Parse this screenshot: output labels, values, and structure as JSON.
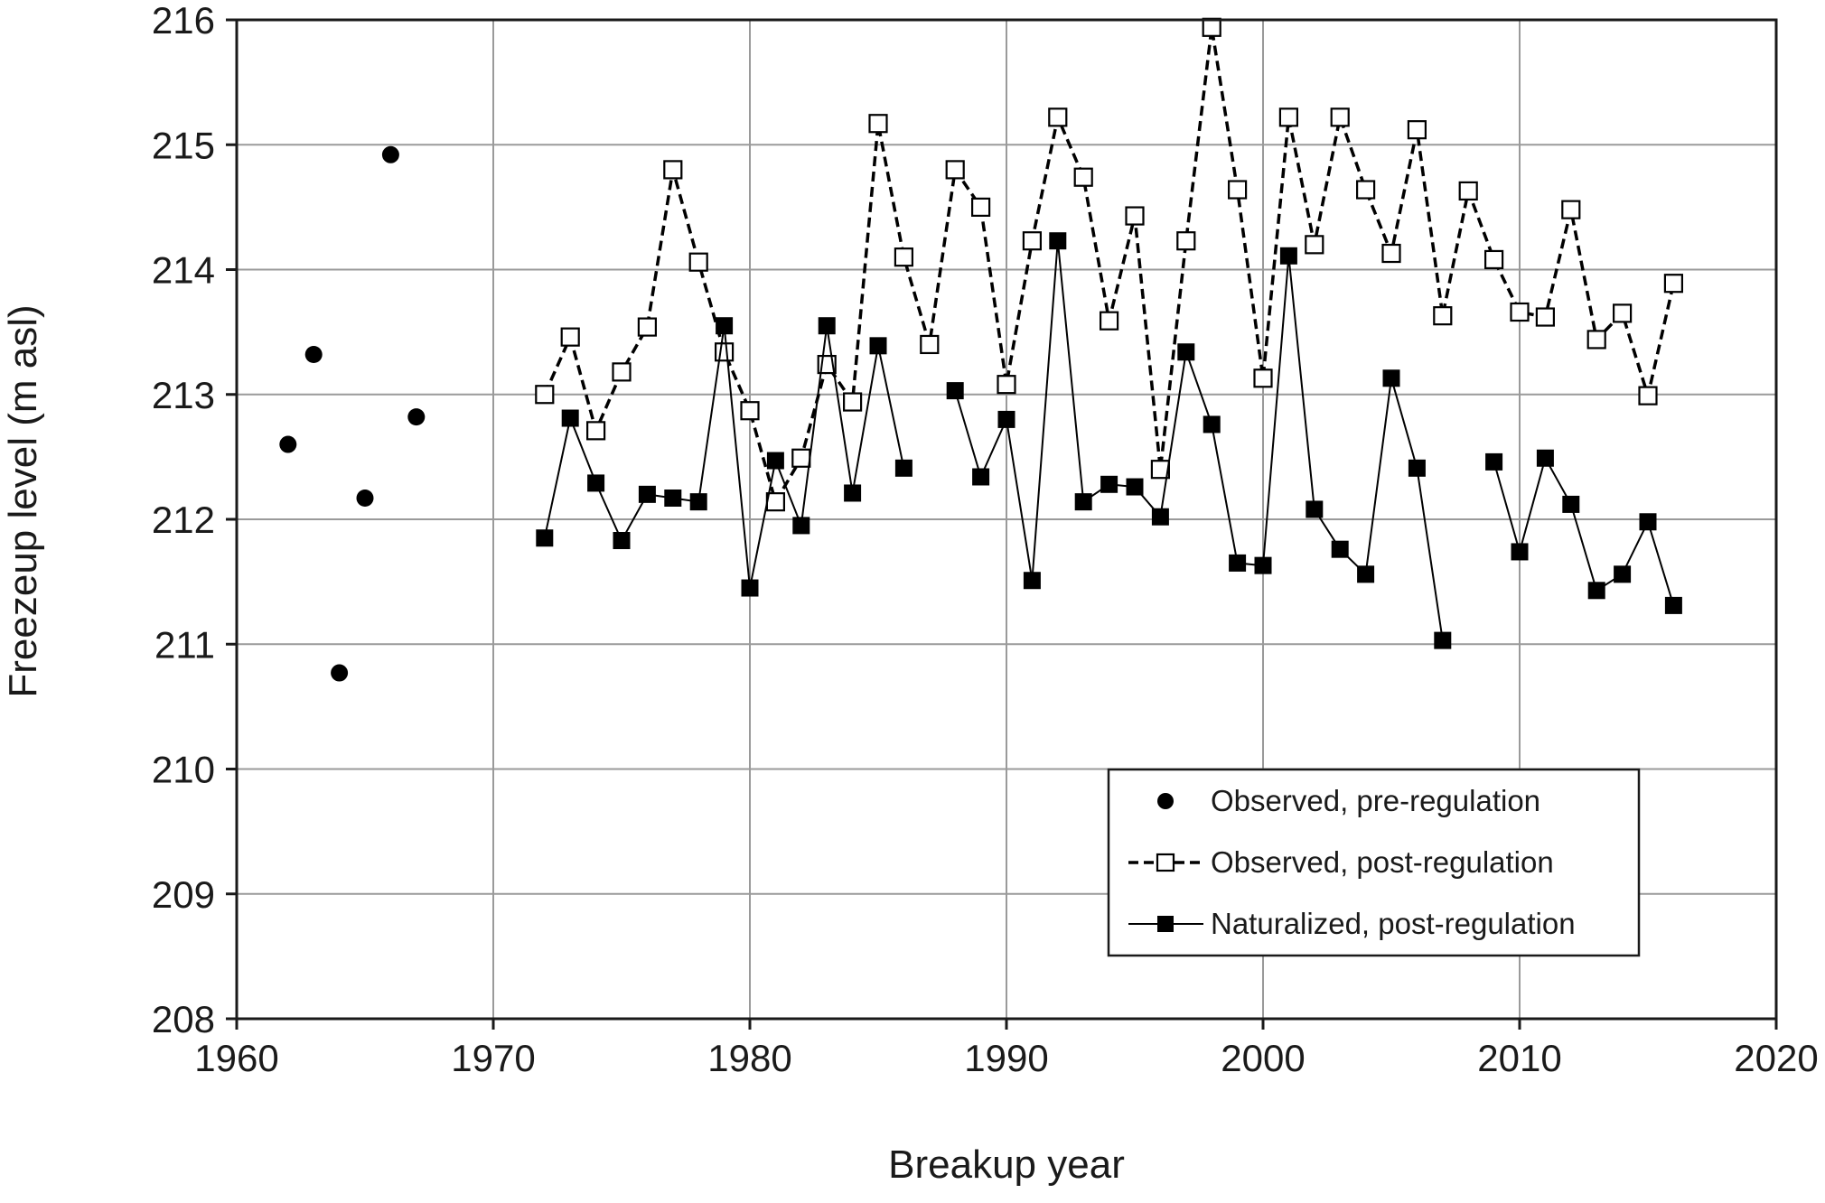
{
  "chart_data": {
    "type": "scatter",
    "title": "",
    "xlabel": "Breakup year",
    "ylabel": "Freezeup level  (m asl)",
    "xlim": [
      1960,
      2020
    ],
    "ylim": [
      208,
      216
    ],
    "x_ticks": [
      1960,
      1970,
      1980,
      1990,
      2000,
      2010,
      2020
    ],
    "y_ticks": [
      208,
      209,
      210,
      211,
      212,
      213,
      214,
      215,
      216
    ],
    "grid": true,
    "legend_position": "bottom-right",
    "series": [
      {
        "name": "Observed, pre-regulation",
        "marker": "filled-circle",
        "line": "none",
        "x": [
          1962,
          1963,
          1964,
          1965,
          1966,
          1967
        ],
        "y": [
          212.6,
          213.32,
          210.77,
          212.17,
          214.92,
          212.82
        ]
      },
      {
        "name": "Observed, post-regulation",
        "marker": "open-square",
        "line": "dashed",
        "x": [
          1972,
          1973,
          1974,
          1975,
          1976,
          1977,
          1978,
          1979,
          1980,
          1981,
          1982,
          1983,
          1984,
          1985,
          1986,
          1987,
          1988,
          1989,
          1990,
          1991,
          1992,
          1993,
          1994,
          1995,
          1996,
          1997,
          1998,
          1999,
          2000,
          2001,
          2002,
          2003,
          2004,
          2005,
          2006,
          2007,
          2008,
          2009,
          2010,
          2011,
          2012,
          2013,
          2014,
          2015,
          2016
        ],
        "y": [
          213.0,
          213.46,
          212.71,
          213.18,
          213.54,
          214.8,
          214.06,
          213.34,
          212.87,
          212.14,
          212.49,
          213.24,
          212.94,
          215.17,
          214.1,
          213.4,
          214.8,
          214.5,
          213.08,
          214.23,
          215.22,
          214.74,
          213.59,
          214.43,
          212.4,
          214.23,
          215.94,
          214.64,
          213.13,
          215.22,
          214.2,
          215.22,
          214.64,
          214.13,
          215.12,
          213.63,
          214.63,
          214.08,
          213.66,
          213.62,
          214.48,
          213.44,
          213.65,
          212.99,
          213.89
        ]
      },
      {
        "name": "Naturalized, post-regulation",
        "marker": "filled-square",
        "line": "solid",
        "x": [
          1972,
          1973,
          1974,
          1975,
          1976,
          1977,
          1978,
          1979,
          1980,
          1981,
          1982,
          1983,
          1984,
          1985,
          1986,
          1988,
          1989,
          1990,
          1991,
          1992,
          1993,
          1994,
          1995,
          1996,
          1997,
          1998,
          1999,
          2000,
          2001,
          2002,
          2003,
          2004,
          2005,
          2006,
          2007,
          2009,
          2010,
          2011,
          2012,
          2013,
          2014,
          2015,
          2016
        ],
        "y": [
          211.85,
          212.81,
          212.29,
          211.83,
          212.2,
          212.17,
          212.14,
          213.55,
          211.45,
          212.47,
          211.95,
          213.55,
          212.21,
          213.39,
          212.41,
          213.03,
          212.34,
          212.8,
          211.51,
          214.23,
          212.14,
          212.28,
          212.26,
          212.02,
          213.34,
          212.76,
          211.65,
          211.63,
          214.11,
          212.08,
          211.76,
          211.56,
          213.13,
          212.41,
          211.03,
          212.46,
          211.74,
          212.49,
          212.12,
          211.43,
          211.56,
          211.98,
          211.31
        ]
      }
    ],
    "line_segments_break": {
      "Naturalized, post-regulation": [
        1987,
        2008
      ]
    }
  }
}
